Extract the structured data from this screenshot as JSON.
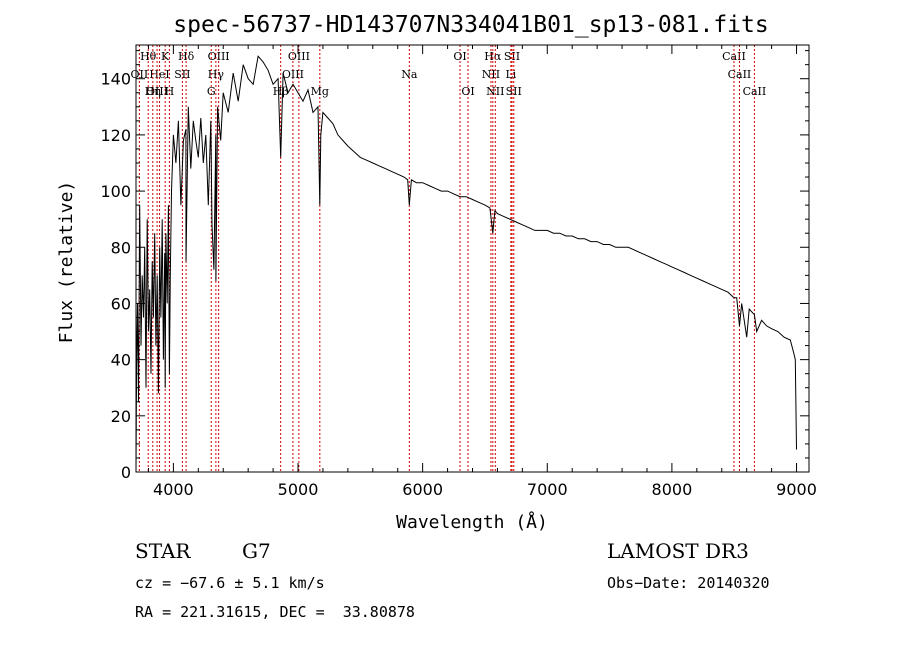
{
  "chart_data": {
    "type": "line",
    "title": "spec-56737-HD143707N334041B01_sp13-081.fits",
    "xlabel": "Wavelength (Å)",
    "ylabel": "Flux (relative)",
    "xlim": [
      3700,
      9100
    ],
    "ylim": [
      0,
      152
    ],
    "xticks": [
      4000,
      5000,
      6000,
      7000,
      8000,
      9000
    ],
    "yticks": [
      0,
      20,
      40,
      60,
      80,
      100,
      120,
      140
    ],
    "series": [
      {
        "name": "flux",
        "x": [
          3700,
          3705,
          3712,
          3720,
          3730,
          3740,
          3750,
          3760,
          3770,
          3780,
          3790,
          3800,
          3810,
          3820,
          3830,
          3840,
          3850,
          3860,
          3870,
          3880,
          3890,
          3900,
          3910,
          3920,
          3930,
          3934,
          3940,
          3950,
          3960,
          3968,
          3975,
          3985,
          4000,
          4020,
          4040,
          4060,
          4080,
          4100,
          4101,
          4120,
          4140,
          4160,
          4180,
          4200,
          4220,
          4240,
          4260,
          4280,
          4300,
          4310,
          4325,
          4340,
          4341,
          4355,
          4380,
          4400,
          4440,
          4480,
          4520,
          4560,
          4600,
          4640,
          4680,
          4720,
          4760,
          4800,
          4840,
          4861,
          4880,
          4920,
          4960,
          5000,
          5040,
          5080,
          5120,
          5160,
          5175,
          5183,
          5200,
          5240,
          5280,
          5320,
          5360,
          5400,
          5450,
          5500,
          5550,
          5600,
          5650,
          5700,
          5750,
          5800,
          5850,
          5880,
          5893,
          5910,
          5950,
          6000,
          6050,
          6100,
          6150,
          6200,
          6250,
          6300,
          6350,
          6400,
          6450,
          6500,
          6540,
          6563,
          6580,
          6600,
          6650,
          6700,
          6750,
          6800,
          6850,
          6900,
          6950,
          7000,
          7050,
          7100,
          7150,
          7200,
          7250,
          7300,
          7350,
          7400,
          7450,
          7500,
          7550,
          7600,
          7650,
          7700,
          7750,
          7800,
          7850,
          7900,
          7950,
          8000,
          8050,
          8100,
          8150,
          8200,
          8250,
          8300,
          8350,
          8400,
          8450,
          8498,
          8520,
          8542,
          8560,
          8600,
          8620,
          8662,
          8680,
          8720,
          8760,
          8800,
          8850,
          8900,
          8950,
          8980,
          8990,
          9000
        ],
        "values": [
          0,
          38,
          60,
          25,
          95,
          45,
          70,
          55,
          80,
          30,
          90,
          50,
          65,
          35,
          75,
          55,
          85,
          45,
          70,
          28,
          80,
          55,
          90,
          40,
          78,
          30,
          85,
          60,
          95,
          35,
          70,
          100,
          120,
          110,
          125,
          95,
          118,
          122,
          75,
          130,
          108,
          125,
          118,
          112,
          126,
          110,
          120,
          95,
          125,
          88,
          72,
          120,
          68,
          130,
          118,
          135,
          128,
          142,
          132,
          145,
          140,
          138,
          148,
          146,
          143,
          138,
          140,
          112,
          142,
          135,
          138,
          135,
          132,
          136,
          128,
          130,
          95,
          120,
          128,
          126,
          124,
          120,
          118,
          116,
          114,
          112,
          111,
          110,
          109,
          108,
          107,
          106,
          105,
          104,
          95,
          104,
          103,
          103,
          102,
          101,
          100,
          100,
          99,
          98,
          98,
          97,
          96,
          95,
          94,
          85,
          93,
          92,
          91,
          90,
          89,
          88,
          87,
          86,
          86,
          86,
          85,
          85,
          84,
          84,
          83,
          83,
          82,
          82,
          81,
          81,
          80,
          80,
          80,
          79,
          78,
          77,
          76,
          75,
          74,
          73,
          72,
          71,
          70,
          69,
          68,
          67,
          66,
          65,
          64,
          62,
          62,
          52,
          60,
          48,
          58,
          56,
          50,
          54,
          52,
          51,
          50,
          48,
          47,
          42,
          40,
          8
        ]
      }
    ],
    "emission_lines": [
      {
        "label": "Hθ",
        "x": 3798,
        "row": 0
      },
      {
        "label": "K",
        "x": 3934,
        "row": 0
      },
      {
        "label": "Hδ",
        "x": 4102,
        "row": 0
      },
      {
        "label": "OIII",
        "x": 4363,
        "row": 0
      },
      {
        "label": "OIII",
        "x": 5007,
        "row": 0
      },
      {
        "label": "OI",
        "x": 6300,
        "row": 0
      },
      {
        "label": "Hα",
        "x": 6563,
        "row": 0
      },
      {
        "label": "SII",
        "x": 6717,
        "row": 0
      },
      {
        "label": "CaII",
        "x": 8498,
        "row": 0
      },
      {
        "label": "OII",
        "x": 3727,
        "row": 1
      },
      {
        "label": "HeI",
        "x": 3889,
        "row": 1
      },
      {
        "label": "SII",
        "x": 4072,
        "row": 1
      },
      {
        "label": "Hγ",
        "x": 4341,
        "row": 1
      },
      {
        "label": "OIII",
        "x": 4959,
        "row": 1
      },
      {
        "label": "Na",
        "x": 5893,
        "row": 1
      },
      {
        "label": "NII",
        "x": 6548,
        "row": 1
      },
      {
        "label": "Li",
        "x": 6708,
        "row": 1
      },
      {
        "label": "CaII",
        "x": 8542,
        "row": 1
      },
      {
        "label": "OIII",
        "x": 3869,
        "row": 2
      },
      {
        "label": "Hη",
        "x": 3835,
        "row": 2
      },
      {
        "label": "H",
        "x": 3968,
        "row": 2
      },
      {
        "label": "G",
        "x": 4304,
        "row": 2
      },
      {
        "label": "Hβ",
        "x": 4861,
        "row": 2
      },
      {
        "label": "Mg",
        "x": 5175,
        "row": 2
      },
      {
        "label": "OI",
        "x": 6364,
        "row": 2
      },
      {
        "label": "NII",
        "x": 6583,
        "row": 2
      },
      {
        "label": "SII",
        "x": 6731,
        "row": 2
      },
      {
        "label": "CaII",
        "x": 8662,
        "row": 2
      }
    ]
  },
  "info": {
    "object_class": "STAR",
    "subclass": "G7",
    "survey": "LAMOST DR3",
    "redshift_line": "cz = −67.6 ± 5.1 km/s",
    "obs_date_line": "Obs−Date: 20140320",
    "coords_line": "RA = 221.31615, DEC =  33.80878"
  },
  "colors": {
    "spectrum": "#000000",
    "emission_line": "#cc0000",
    "axis": "#000000"
  }
}
